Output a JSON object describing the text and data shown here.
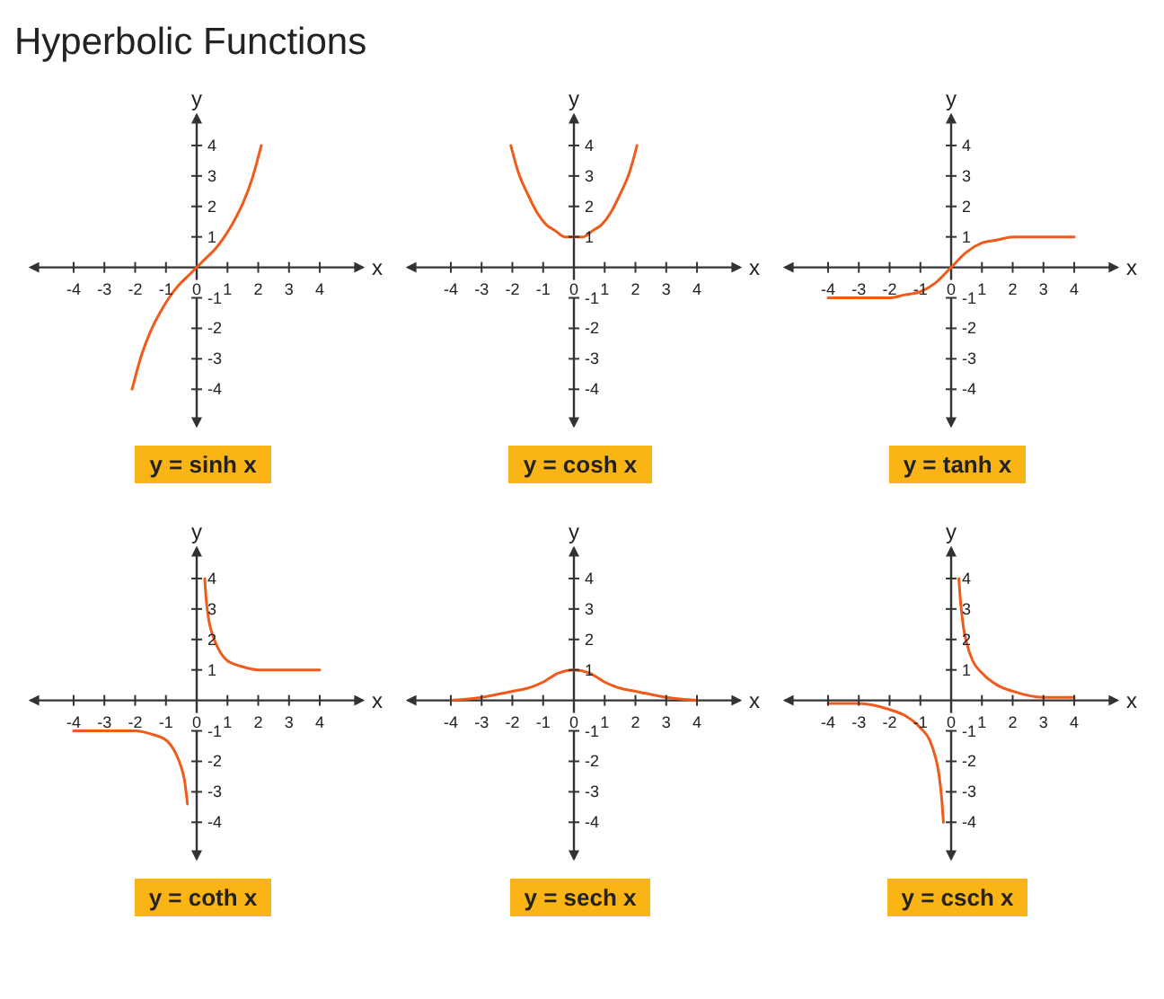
{
  "chart_data": [
    {
      "type": "other",
      "title": "Hyperbolic Functions"
    },
    {
      "type": "line",
      "title": "y = sinh x",
      "xlabel": "x",
      "ylabel": "y",
      "xlim": [
        -5.4,
        5.4
      ],
      "ylim": [
        -5.2,
        5.0
      ],
      "xticks": [
        -4,
        -3,
        -2,
        -1,
        0,
        1,
        2,
        3,
        4
      ],
      "yticks": [
        -4,
        -3,
        -2,
        -1,
        1,
        2,
        3,
        4
      ],
      "series": [
        {
          "color": "#f05a1a",
          "x": [
            -2.1,
            -1.8,
            -1.5,
            -1.2,
            -0.9,
            -0.6,
            -0.3,
            0,
            0.3,
            0.6,
            0.9,
            1.2,
            1.5,
            1.8,
            2.1
          ],
          "values": [
            -4.0,
            -2.9,
            -2.1,
            -1.5,
            -1.0,
            -0.6,
            -0.3,
            0,
            0.3,
            0.6,
            1.0,
            1.5,
            2.1,
            2.9,
            4.0
          ]
        }
      ]
    },
    {
      "type": "line",
      "title": "y = cosh x",
      "xlabel": "x",
      "ylabel": "y",
      "xlim": [
        -5.4,
        5.4
      ],
      "ylim": [
        -5.2,
        5.0
      ],
      "xticks": [
        -4,
        -3,
        -2,
        -1,
        0,
        1,
        2,
        3,
        4
      ],
      "yticks": [
        -4,
        -3,
        -2,
        -1,
        1,
        2,
        3,
        4
      ],
      "series": [
        {
          "color": "#f05a1a",
          "x": [
            -2.05,
            -1.8,
            -1.5,
            -1.2,
            -0.9,
            -0.6,
            -0.3,
            0,
            0.3,
            0.6,
            0.9,
            1.2,
            1.5,
            1.8,
            2.05
          ],
          "values": [
            4.0,
            3.1,
            2.4,
            1.8,
            1.4,
            1.2,
            1.0,
            1.0,
            1.0,
            1.2,
            1.4,
            1.8,
            2.4,
            3.1,
            4.0
          ]
        }
      ]
    },
    {
      "type": "line",
      "title": "y = tanh x",
      "xlabel": "x",
      "ylabel": "y",
      "xlim": [
        -5.4,
        5.4
      ],
      "ylim": [
        -5.2,
        5.0
      ],
      "xticks": [
        -4,
        -3,
        -2,
        -1,
        0,
        1,
        2,
        3,
        4
      ],
      "yticks": [
        -4,
        -3,
        -2,
        -1,
        1,
        2,
        3,
        4
      ],
      "series": [
        {
          "color": "#f05a1a",
          "x": [
            -4,
            -3,
            -2,
            -1.5,
            -1,
            -0.5,
            0,
            0.5,
            1,
            1.5,
            2,
            3,
            4
          ],
          "values": [
            -1.0,
            -1.0,
            -1.0,
            -0.9,
            -0.8,
            -0.5,
            0,
            0.5,
            0.8,
            0.9,
            1.0,
            1.0,
            1.0
          ]
        }
      ]
    },
    {
      "type": "line",
      "title": "y = coth x",
      "xlabel": "x",
      "ylabel": "y",
      "xlim": [
        -5.4,
        5.4
      ],
      "ylim": [
        -5.2,
        5.0
      ],
      "xticks": [
        -4,
        -3,
        -2,
        -1,
        0,
        1,
        2,
        3,
        4
      ],
      "yticks": [
        -4,
        -3,
        -2,
        -1,
        1,
        2,
        3,
        4
      ],
      "series": [
        {
          "color": "#f05a1a",
          "x": [
            -4,
            -3,
            -2,
            -1.5,
            -1,
            -0.7,
            -0.5,
            -0.4,
            -0.3,
            0,
            0.26,
            0.3,
            0.4,
            0.5,
            0.7,
            1,
            1.5,
            2,
            3,
            4
          ],
          "values": [
            -1.0,
            -1.0,
            -1.0,
            -1.1,
            -1.3,
            -1.7,
            -2.2,
            -2.6,
            -3.4,
            null,
            4.0,
            3.4,
            2.6,
            2.2,
            1.7,
            1.3,
            1.1,
            1.0,
            1.0,
            1.0
          ]
        }
      ]
    },
    {
      "type": "line",
      "title": "y = sech x",
      "xlabel": "x",
      "ylabel": "y",
      "xlim": [
        -5.4,
        5.4
      ],
      "ylim": [
        -5.2,
        5.0
      ],
      "xticks": [
        -4,
        -3,
        -2,
        -1,
        0,
        1,
        2,
        3,
        4
      ],
      "yticks": [
        -4,
        -3,
        -2,
        -1,
        1,
        2,
        3,
        4
      ],
      "series": [
        {
          "color": "#f05a1a",
          "x": [
            -4,
            -3,
            -2,
            -1.5,
            -1,
            -0.5,
            0,
            0.5,
            1,
            1.5,
            2,
            3,
            4
          ],
          "values": [
            0.0,
            0.1,
            0.3,
            0.4,
            0.6,
            0.9,
            1.0,
            0.9,
            0.6,
            0.4,
            0.3,
            0.1,
            0.0
          ]
        }
      ]
    },
    {
      "type": "line",
      "title": "y = csch x",
      "xlabel": "x",
      "ylabel": "y",
      "xlim": [
        -5.4,
        5.4
      ],
      "ylim": [
        -5.2,
        5.0
      ],
      "xticks": [
        -4,
        -3,
        -2,
        -1,
        0,
        1,
        2,
        3,
        4
      ],
      "yticks": [
        -4,
        -3,
        -2,
        -1,
        1,
        2,
        3,
        4
      ],
      "series": [
        {
          "color": "#f05a1a",
          "x": [
            -4,
            -3,
            -2,
            -1.5,
            -1,
            -0.7,
            -0.5,
            -0.4,
            -0.3,
            -0.25,
            0,
            0.25,
            0.3,
            0.4,
            0.5,
            0.7,
            1,
            1.5,
            2,
            3,
            4
          ],
          "values": [
            -0.1,
            -0.1,
            -0.3,
            -0.5,
            -0.9,
            -1.3,
            -1.9,
            -2.4,
            -3.3,
            -4.0,
            null,
            4.0,
            3.3,
            2.4,
            1.9,
            1.3,
            0.9,
            0.5,
            0.3,
            0.1,
            0.1
          ]
        }
      ]
    }
  ]
}
